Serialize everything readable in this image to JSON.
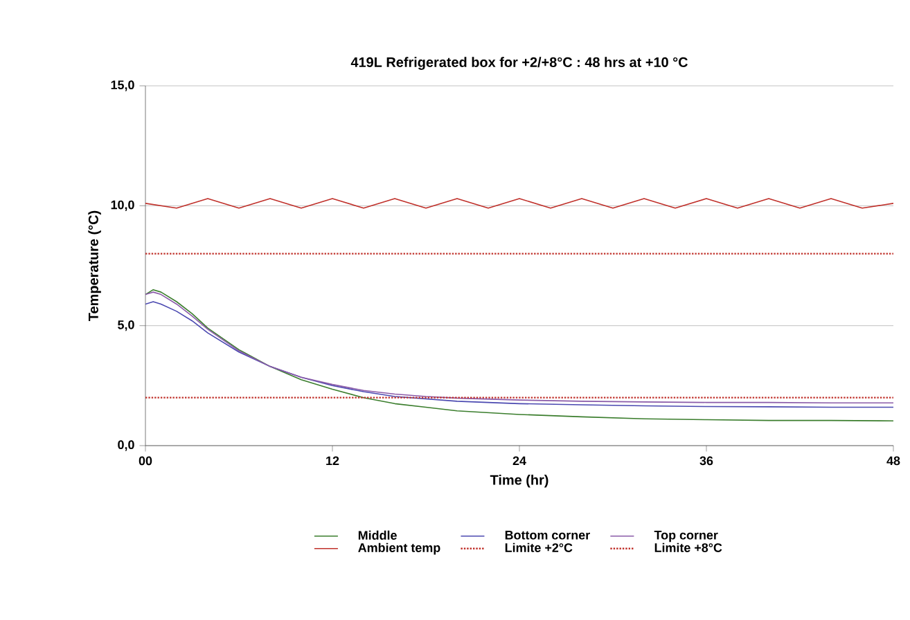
{
  "chart_data": {
    "type": "line",
    "title": "419L Refrigerated box for +2/+8°C : 48 hrs at +10 °C",
    "xlabel": "Time (hr)",
    "ylabel": "Temperature (°C)",
    "xlim": [
      0,
      48
    ],
    "ylim": [
      0,
      15
    ],
    "xticks": [
      {
        "value": 0,
        "label": "00"
      },
      {
        "value": 12,
        "label": "12"
      },
      {
        "value": 24,
        "label": "24"
      },
      {
        "value": 36,
        "label": "36"
      },
      {
        "value": 48,
        "label": "48"
      }
    ],
    "yticks": [
      {
        "value": 0,
        "label": "0,0"
      },
      {
        "value": 5,
        "label": "5,0"
      },
      {
        "value": 10,
        "label": "10,0"
      },
      {
        "value": 15,
        "label": "15,0"
      }
    ],
    "grid": "y",
    "legend": "bottom",
    "marker": "none",
    "series": [
      {
        "name": "Middle",
        "color": "#3a7d2c",
        "x": [
          0,
          0.5,
          1,
          2,
          3,
          4,
          6,
          8,
          10,
          12,
          14,
          16,
          18,
          20,
          24,
          28,
          32,
          36,
          40,
          44,
          48
        ],
        "values": [
          6.3,
          6.5,
          6.4,
          6.0,
          5.5,
          4.9,
          4.0,
          3.3,
          2.75,
          2.35,
          2.0,
          1.75,
          1.6,
          1.45,
          1.3,
          1.2,
          1.12,
          1.08,
          1.05,
          1.05,
          1.03
        ]
      },
      {
        "name": "Bottom corner",
        "color": "#4a48b0",
        "x": [
          0,
          0.5,
          1,
          2,
          3,
          4,
          6,
          8,
          10,
          12,
          14,
          16,
          18,
          20,
          24,
          28,
          32,
          36,
          40,
          44,
          48
        ],
        "values": [
          5.9,
          6.0,
          5.9,
          5.6,
          5.2,
          4.7,
          3.9,
          3.3,
          2.85,
          2.5,
          2.25,
          2.05,
          1.95,
          1.85,
          1.75,
          1.7,
          1.66,
          1.63,
          1.62,
          1.6,
          1.6
        ]
      },
      {
        "name": "Top corner",
        "color": "#8a5aa8",
        "x": [
          0,
          0.5,
          1,
          2,
          3,
          4,
          6,
          8,
          10,
          12,
          14,
          16,
          18,
          20,
          24,
          28,
          32,
          36,
          40,
          44,
          48
        ],
        "values": [
          6.3,
          6.4,
          6.3,
          5.9,
          5.4,
          4.85,
          3.95,
          3.3,
          2.85,
          2.55,
          2.3,
          2.15,
          2.05,
          1.98,
          1.9,
          1.85,
          1.82,
          1.8,
          1.8,
          1.78,
          1.78
        ]
      },
      {
        "name": "Ambient temp",
        "color": "#c0302a",
        "x": [
          0,
          2,
          4,
          6,
          8,
          10,
          12,
          14,
          16,
          18,
          20,
          22,
          24,
          26,
          28,
          30,
          32,
          34,
          36,
          38,
          40,
          42,
          44,
          46,
          48
        ],
        "values": [
          10.1,
          9.9,
          10.3,
          9.9,
          10.3,
          9.9,
          10.3,
          9.9,
          10.3,
          9.9,
          10.3,
          9.9,
          10.3,
          9.9,
          10.3,
          9.9,
          10.3,
          9.9,
          10.3,
          9.9,
          10.3,
          9.9,
          10.3,
          9.9,
          10.1
        ]
      },
      {
        "name": "Limite +2°C",
        "color": "#c0302a",
        "line_style": "dotted",
        "x": [
          0,
          48
        ],
        "values": [
          2,
          2
        ]
      },
      {
        "name": "Limite +8°C",
        "color": "#c0302a",
        "line_style": "dotted",
        "x": [
          0,
          48
        ],
        "values": [
          8,
          8
        ]
      }
    ]
  }
}
